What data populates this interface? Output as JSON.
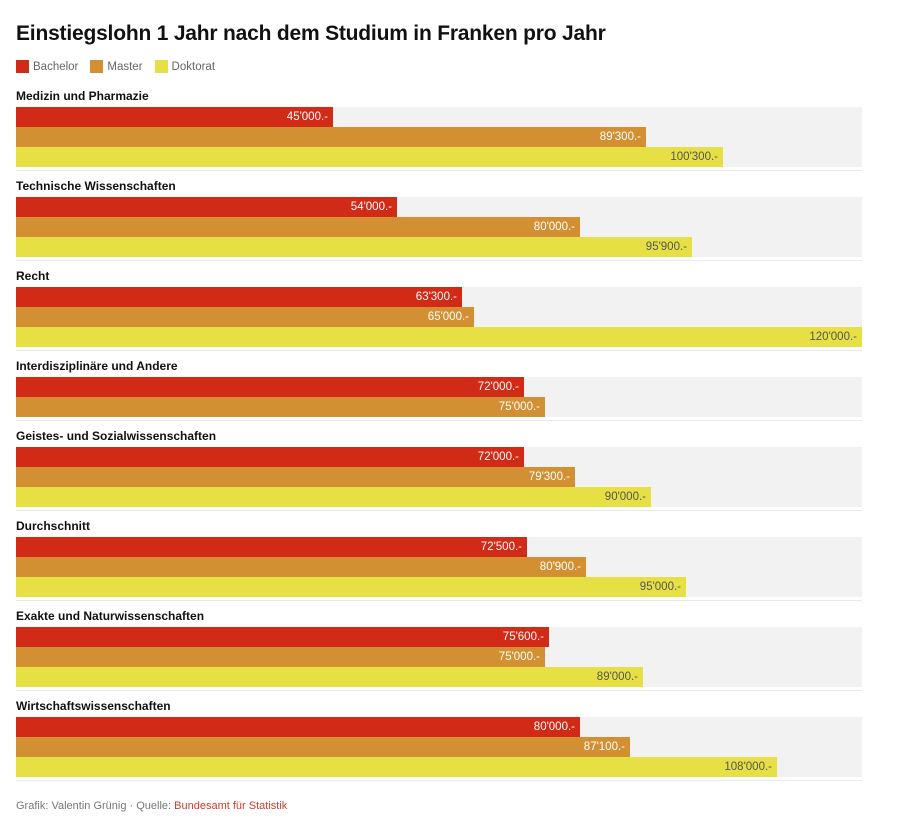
{
  "chart_data": {
    "type": "bar",
    "orientation": "horizontal",
    "title": "Einstiegslohn 1 Jahr nach dem Studium in Franken pro Jahr",
    "xlabel": "",
    "ylabel": "",
    "xlim": [
      0,
      120000
    ],
    "grid": false,
    "legend_position": "top-left",
    "legend": [
      {
        "name": "Bachelor",
        "color": "#d12a16"
      },
      {
        "name": "Master",
        "color": "#d39033"
      },
      {
        "name": "Doktorat",
        "color": "#e6e045"
      }
    ],
    "label_suffix": ".-",
    "groups": [
      {
        "name": "Medizin und Pharmazie",
        "values": {
          "Bachelor": 45000,
          "Master": 89300,
          "Doktorat": 100300
        }
      },
      {
        "name": "Technische Wissenschaften",
        "values": {
          "Bachelor": 54000,
          "Master": 80000,
          "Doktorat": 95900
        }
      },
      {
        "name": "Recht",
        "values": {
          "Bachelor": 63300,
          "Master": 65000,
          "Doktorat": 120000
        }
      },
      {
        "name": "Interdisziplinäre und Andere",
        "values": {
          "Bachelor": 72000,
          "Master": 75000
        }
      },
      {
        "name": "Geistes- und Sozialwissenschaften",
        "values": {
          "Bachelor": 72000,
          "Master": 79300,
          "Doktorat": 90000
        }
      },
      {
        "name": "Durchschnitt",
        "values": {
          "Bachelor": 72500,
          "Master": 80900,
          "Doktorat": 95000
        }
      },
      {
        "name": "Exakte und Naturwissenschaften",
        "values": {
          "Bachelor": 75600,
          "Master": 75000,
          "Doktorat": 89000
        }
      },
      {
        "name": "Wirtschaftswissenschaften",
        "values": {
          "Bachelor": 80000,
          "Master": 87100,
          "Doktorat": 108000
        }
      }
    ]
  },
  "footer": {
    "credit": "Grafik: Valentin Grünig · Quelle: ",
    "source_link": "Bundesamt für Statistik"
  },
  "colors": {
    "track": "#f2f2f2",
    "label_light": "#ffffff",
    "label_dark": "#555555",
    "link": "#d13c2c"
  }
}
